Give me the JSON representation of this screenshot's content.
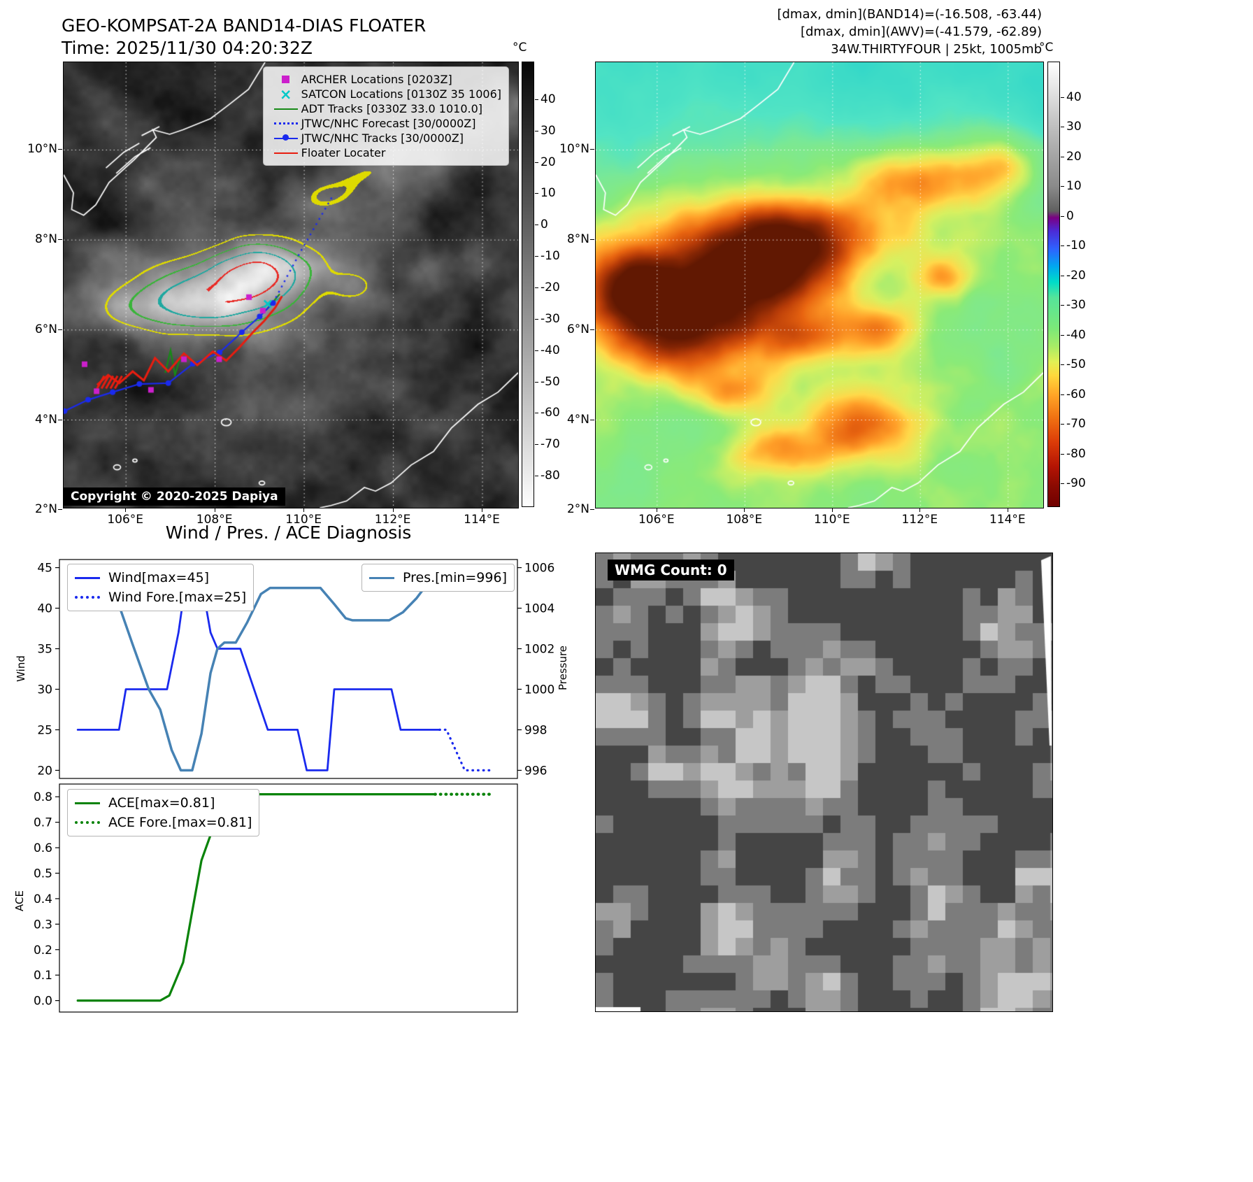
{
  "band14": {
    "title": "GEO-KOMPSAT-2A BAND14-DIAS FLOATER",
    "time_line": "Time: 2025/11/30 04:20:32Z",
    "copyright": "Copyright © 2020-2025 Dapiya",
    "colorbar": {
      "unit": "°C",
      "ticks": [
        "40",
        "30",
        "20",
        "10",
        "0",
        "-10",
        "-20",
        "-30",
        "-40",
        "-50",
        "-60",
        "-70",
        "-80"
      ]
    },
    "legend_items": [
      {
        "marker": "archer-square",
        "label": "ARCHER Locations [0203Z]",
        "color": "#cc1fcc"
      },
      {
        "marker": "satcon-x",
        "label": "SATCON Locations [0130Z 35 1006]",
        "color": "#00c8c8"
      },
      {
        "marker": "adt-line",
        "label": "ADT Tracks [0330Z 33.0 1010.0]",
        "color": "#178a17"
      },
      {
        "marker": "forecast-dotted",
        "label": "JTWC/NHC Forecast [30/0000Z]",
        "color": "#1a2aee"
      },
      {
        "marker": "track-line-dot",
        "label": "JTWC/NHC Tracks [30/0000Z]",
        "color": "#1a2aee"
      },
      {
        "marker": "floater-line",
        "label": "Floater Locater",
        "color": "#e81d10"
      }
    ]
  },
  "awv": {
    "header_lines": [
      "[dmax, dmin](BAND14)=(-16.508, -63.44)",
      "[dmax, dmin](AWV)=(-41.579, -62.89)",
      "34W.THIRTYFOUR | 25kt, 1005mb"
    ],
    "colorbar": {
      "unit": "°C",
      "ticks": [
        "40",
        "30",
        "20",
        "10",
        "0",
        "-10",
        "-20",
        "-30",
        "-40",
        "-50",
        "-60",
        "-70",
        "-80",
        "-90"
      ]
    }
  },
  "map": {
    "lon_ticks": [
      106,
      108,
      110,
      112,
      114
    ],
    "lon_labels": [
      "106°E",
      "108°E",
      "110°E",
      "112°E",
      "114°E"
    ],
    "lat_ticks": [
      10,
      8,
      6,
      4,
      2
    ],
    "lat_labels": [
      "10°N",
      "8°N",
      "6°N",
      "4°N",
      "2°N"
    ]
  },
  "diagnosis": {
    "title": "Wind / Pres. / ACE Diagnosis",
    "wind_ylabel": "Wind",
    "pressure_ylabel": "Pressure",
    "ace_ylabel": "ACE",
    "chart_data": [
      {
        "type": "line",
        "xlim": [
          0,
          100
        ],
        "ylabel_left": "Wind",
        "ylabel_right": "Pressure",
        "ylim_left": [
          19,
          46
        ],
        "yticks_left": [
          20,
          25,
          30,
          35,
          40,
          45
        ],
        "ytick_labels_left": [
          "20",
          "25",
          "30",
          "35",
          "40",
          "45"
        ],
        "ylim_right": [
          995.6,
          1006.4
        ],
        "yticks_right": [
          996,
          998,
          1000,
          1002,
          1004,
          1006
        ],
        "ytick_labels_right": [
          "996",
          "998",
          "1000",
          "1002",
          "1004",
          "1006"
        ],
        "series": [
          {
            "name": "Wind[max=45]",
            "axis": "left",
            "style": "solid",
            "color": "#1a2aee",
            "points": [
              [
                4,
                25
              ],
              [
                13,
                25
              ],
              [
                14.5,
                30
              ],
              [
                23.5,
                30
              ],
              [
                26,
                37
              ],
              [
                28,
                45
              ],
              [
                30.5,
                45
              ],
              [
                33,
                37
              ],
              [
                34.5,
                35
              ],
              [
                39.5,
                35
              ],
              [
                45.5,
                25
              ],
              [
                52,
                25
              ],
              [
                54,
                20
              ],
              [
                58.5,
                20
              ],
              [
                60,
                30
              ],
              [
                72.5,
                30
              ],
              [
                74.5,
                25
              ],
              [
                83,
                25
              ]
            ]
          },
          {
            "name": "Wind Fore.[max=25]",
            "axis": "left",
            "style": "dotted",
            "color": "#1a2aee",
            "points": [
              [
                83,
                25
              ],
              [
                84.5,
                25
              ],
              [
                88.5,
                20
              ],
              [
                94.5,
                20
              ]
            ]
          },
          {
            "name": "Pres.[min=996]",
            "axis": "right",
            "style": "solid",
            "color": "#4682b4",
            "points": [
              [
                4,
                1006
              ],
              [
                9,
                1006
              ],
              [
                12,
                1004.8
              ],
              [
                16,
                1002.2
              ],
              [
                19.5,
                1000
              ],
              [
                22,
                999
              ],
              [
                24.5,
                997
              ],
              [
                26.5,
                996
              ],
              [
                29,
                996
              ],
              [
                31,
                997.8
              ],
              [
                33,
                1000.8
              ],
              [
                34.5,
                1002
              ],
              [
                36,
                1002.3
              ],
              [
                38.5,
                1002.3
              ],
              [
                41,
                1003.3
              ],
              [
                44,
                1004.7
              ],
              [
                46,
                1005
              ],
              [
                57,
                1005
              ],
              [
                60,
                1004.2
              ],
              [
                62.5,
                1003.5
              ],
              [
                64,
                1003.4
              ],
              [
                72,
                1003.4
              ],
              [
                75,
                1003.8
              ],
              [
                78,
                1004.5
              ],
              [
                81,
                1005.4
              ],
              [
                83,
                1006.1
              ],
              [
                85,
                1006.1
              ],
              [
                87,
                1005.2
              ]
            ]
          }
        ]
      },
      {
        "type": "line",
        "xlim": [
          0,
          100
        ],
        "ylabel_left": "ACE",
        "ylim_left": [
          -0.045,
          0.85
        ],
        "yticks_left": [
          0,
          0.1,
          0.2,
          0.3,
          0.4,
          0.5,
          0.6,
          0.7,
          0.8
        ],
        "ytick_labels_left": [
          "0.0",
          "0.1",
          "0.2",
          "0.3",
          "0.4",
          "0.5",
          "0.6",
          "0.7",
          "0.8"
        ],
        "series": [
          {
            "name": "ACE[max=0.81]",
            "axis": "left",
            "style": "solid",
            "color": "#0a830a",
            "points": [
              [
                4,
                0
              ],
              [
                22,
                0
              ],
              [
                24,
                0.02
              ],
              [
                27,
                0.15
              ],
              [
                29,
                0.35
              ],
              [
                31,
                0.55
              ],
              [
                32,
                0.6
              ],
              [
                34,
                0.7
              ],
              [
                36,
                0.77
              ],
              [
                38,
                0.81
              ],
              [
                82,
                0.81
              ]
            ]
          },
          {
            "name": "ACE Fore.[max=0.81]",
            "axis": "left",
            "style": "dotted",
            "color": "#0a830a",
            "points": [
              [
                82,
                0.81
              ],
              [
                94.5,
                0.81
              ]
            ]
          }
        ]
      }
    ]
  },
  "wmg": {
    "label": "WMG Count: 0"
  }
}
